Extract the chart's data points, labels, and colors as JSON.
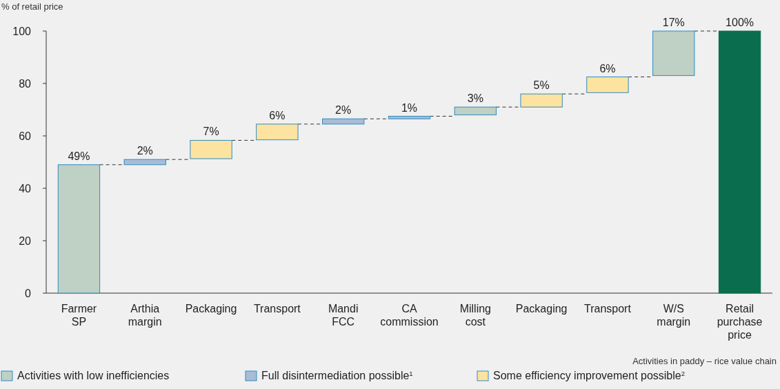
{
  "chart_data": {
    "type": "bar",
    "ylabel": "% of retail price",
    "categories": [
      "Farmer SP",
      "Arthia margin",
      "Packaging",
      "Transport",
      "Mandi FCC",
      "CA commission",
      "Milling cost",
      "Packaging",
      "Transport",
      "W/S margin",
      "Retail purchase price"
    ],
    "series": [
      {
        "name": "Activities with low inefficiencies",
        "color": "#bfd0c4",
        "values": [
          49,
          null,
          null,
          null,
          null,
          null,
          3,
          null,
          null,
          17,
          null
        ],
        "base": [
          0,
          null,
          null,
          null,
          null,
          null,
          68,
          null,
          null,
          83,
          null
        ]
      },
      {
        "name": "Full disintermediation possible$^{1}$",
        "color": "#a9bcd6",
        "values": [
          null,
          2,
          null,
          null,
          2,
          1,
          null,
          null,
          null,
          null,
          null
        ],
        "base": [
          null,
          49,
          null,
          null,
          64.5,
          66.5,
          null,
          null,
          null,
          null,
          null
        ]
      },
      {
        "name": "Some efficiency improvement possible$^{2}$",
        "color": "#fde3a0",
        "values": [
          null,
          null,
          7,
          6,
          null,
          null,
          null,
          5,
          6,
          null,
          null
        ],
        "base": [
          null,
          null,
          51.3,
          58.5,
          null,
          null,
          null,
          71,
          76.5,
          null,
          null
        ]
      },
      {
        "color": "#0a6e4e",
        "values": [
          null,
          null,
          null,
          null,
          null,
          null,
          null,
          null,
          null,
          null,
          100
        ],
        "base": [
          null,
          null,
          null,
          null,
          null,
          null,
          null,
          null,
          null,
          null,
          0
        ]
      }
    ],
    "value_labels": [
      "49%",
      "2%",
      "7%",
      "6%",
      "2%",
      "1%",
      "3%",
      "5%",
      "6%",
      "17%",
      "100%"
    ],
    "ylim": [
      0,
      100
    ],
    "yticks": [
      0,
      20,
      40,
      60,
      80,
      100
    ],
    "grid": false,
    "legend": "bottom",
    "annotations": [
      "Activities in paddy – rice value chain"
    ]
  }
}
